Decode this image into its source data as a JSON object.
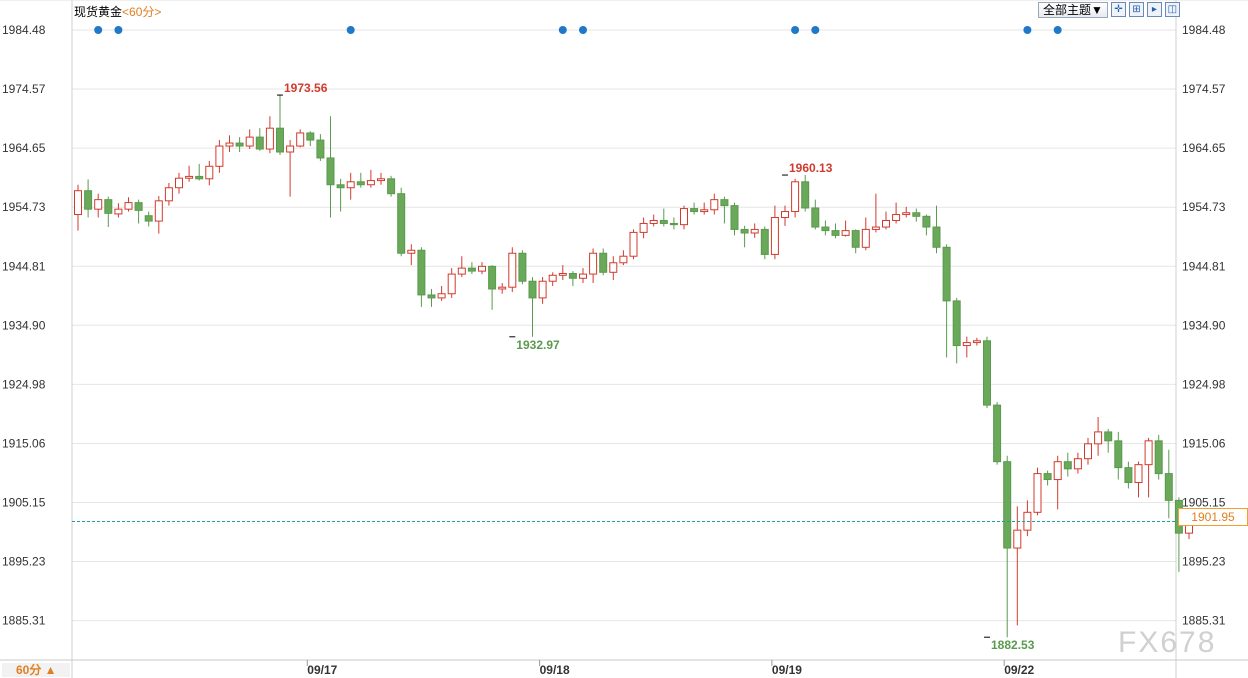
{
  "header": {
    "instrument": "现货黄金",
    "interval": "<60分>",
    "theme_label": "全部主题▼",
    "tool_icons": [
      "crosshair-icon",
      "grid-icon",
      "play-icon",
      "split-icon"
    ]
  },
  "footer": {
    "period_label": "60分 ▲",
    "watermark": "FX678"
  },
  "colors": {
    "up": "#d23a2e",
    "down": "#5a9a4e",
    "down_fill": "#6aa85a",
    "marker": "#1f78c8",
    "last_line": "#2a9a9a",
    "last_tag": "#e07f1f",
    "grid": "#e6e6e6"
  },
  "chart_data": {
    "type": "candlestick",
    "title": "现货黄金",
    "xlabel": "",
    "ylabel": "",
    "ylim": [
      1878.7,
      1986.5
    ],
    "grid": true,
    "yticks": [
      "1984.48",
      "1974.57",
      "1964.65",
      "1954.73",
      "1944.81",
      "1934.90",
      "1924.98",
      "1915.06",
      "1905.15",
      "1895.23",
      "1885.31"
    ],
    "date_labels": [
      {
        "label": "09/17",
        "index": 23
      },
      {
        "label": "09/18",
        "index": 46
      },
      {
        "label": "09/19",
        "index": 69
      },
      {
        "label": "09/22",
        "index": 92
      }
    ],
    "last_price": "1901.95",
    "high_low_labels": [
      {
        "text": "1973.56",
        "index": 20,
        "price": 1973.56,
        "kind": "high"
      },
      {
        "text": "1932.97",
        "index": 43,
        "price": 1932.97,
        "kind": "low"
      },
      {
        "text": "1960.13",
        "index": 70,
        "price": 1960.13,
        "kind": "high"
      },
      {
        "text": "1882.53",
        "index": 90,
        "price": 1882.53,
        "kind": "low"
      }
    ],
    "event_marker_indices": [
      2,
      4,
      27,
      48,
      50,
      71,
      73,
      94,
      97
    ],
    "candles": [
      [
        1953.5,
        1957.5,
        1958.5,
        1950.8
      ],
      [
        1957.5,
        1954.4,
        1959.4,
        1953.0
      ],
      [
        1954.4,
        1956.0,
        1957.0,
        1953.0
      ],
      [
        1956.0,
        1953.7,
        1956.5,
        1951.4
      ],
      [
        1953.6,
        1954.4,
        1955.4,
        1953.0
      ],
      [
        1954.4,
        1955.5,
        1956.4,
        1954.0
      ],
      [
        1955.5,
        1954.2,
        1956.0,
        1952.0
      ],
      [
        1953.3,
        1952.4,
        1954.0,
        1951.5
      ],
      [
        1952.4,
        1955.8,
        1956.6,
        1950.3
      ],
      [
        1955.8,
        1958.0,
        1958.8,
        1955.0
      ],
      [
        1958.0,
        1959.6,
        1960.5,
        1957.0
      ],
      [
        1959.6,
        1959.9,
        1961.7,
        1959.0
      ],
      [
        1959.9,
        1959.5,
        1962.0,
        1959.2
      ],
      [
        1959.5,
        1961.6,
        1962.5,
        1958.4
      ],
      [
        1961.6,
        1965.0,
        1966.0,
        1960.5
      ],
      [
        1965.0,
        1965.5,
        1966.8,
        1964.0
      ],
      [
        1965.5,
        1965.0,
        1966.5,
        1964.0
      ],
      [
        1965.0,
        1966.5,
        1967.8,
        1964.5
      ],
      [
        1966.5,
        1964.5,
        1968.0,
        1964.2
      ],
      [
        1964.5,
        1968.0,
        1970.0,
        1963.8
      ],
      [
        1968.0,
        1964.0,
        1973.56,
        1963.5
      ],
      [
        1964.0,
        1965.0,
        1966.0,
        1956.5
      ],
      [
        1965.0,
        1967.2,
        1967.8,
        1964.8
      ],
      [
        1967.2,
        1966.0,
        1967.5,
        1965.0
      ],
      [
        1966.0,
        1963.0,
        1967.0,
        1962.5
      ],
      [
        1963.0,
        1958.5,
        1970.0,
        1953.0
      ],
      [
        1958.5,
        1958.0,
        1959.5,
        1954.0
      ],
      [
        1958.0,
        1959.0,
        1960.5,
        1956.0
      ],
      [
        1959.0,
        1958.5,
        1960.5,
        1958.0
      ],
      [
        1958.5,
        1959.2,
        1961.0,
        1958.0
      ],
      [
        1959.2,
        1959.5,
        1960.5,
        1958.5
      ],
      [
        1959.5,
        1957.0,
        1960.0,
        1956.5
      ],
      [
        1957.0,
        1947.0,
        1958.0,
        1946.5
      ],
      [
        1947.0,
        1947.5,
        1948.5,
        1945.0
      ],
      [
        1947.5,
        1940.0,
        1948.0,
        1938.0
      ],
      [
        1940.0,
        1939.5,
        1941.0,
        1938.0
      ],
      [
        1939.5,
        1940.2,
        1941.5,
        1939.0
      ],
      [
        1940.2,
        1943.5,
        1944.5,
        1939.5
      ],
      [
        1943.5,
        1944.5,
        1946.5,
        1943.0
      ],
      [
        1944.5,
        1944.0,
        1945.5,
        1943.5
      ],
      [
        1944.0,
        1944.8,
        1945.5,
        1943.5
      ],
      [
        1944.8,
        1941.0,
        1945.0,
        1937.5
      ],
      [
        1941.0,
        1941.3,
        1942.0,
        1940.2
      ],
      [
        1941.3,
        1947.0,
        1948.0,
        1940.5
      ],
      [
        1947.0,
        1942.3,
        1947.5,
        1941.8
      ],
      [
        1942.3,
        1939.5,
        1943.0,
        1932.97
      ],
      [
        1939.5,
        1942.3,
        1943.0,
        1938.5
      ],
      [
        1942.3,
        1943.3,
        1943.8,
        1941.5
      ],
      [
        1943.3,
        1943.6,
        1945.0,
        1942.5
      ],
      [
        1943.6,
        1942.8,
        1944.0,
        1941.5
      ],
      [
        1942.8,
        1943.5,
        1944.5,
        1942.0
      ],
      [
        1943.5,
        1947.0,
        1947.8,
        1942.0
      ],
      [
        1947.0,
        1943.8,
        1947.8,
        1943.3
      ],
      [
        1943.8,
        1945.4,
        1946.5,
        1942.5
      ],
      [
        1945.4,
        1946.5,
        1947.5,
        1945.0
      ],
      [
        1946.5,
        1950.5,
        1951.0,
        1946.0
      ],
      [
        1950.5,
        1952.0,
        1953.0,
        1949.5
      ],
      [
        1952.0,
        1952.5,
        1953.5,
        1951.5
      ],
      [
        1952.5,
        1952.0,
        1954.5,
        1951.5
      ],
      [
        1952.0,
        1951.8,
        1953.0,
        1951.0
      ],
      [
        1951.8,
        1954.5,
        1955.0,
        1951.0
      ],
      [
        1954.5,
        1954.0,
        1955.5,
        1953.5
      ],
      [
        1954.0,
        1954.3,
        1955.5,
        1953.5
      ],
      [
        1954.3,
        1956.0,
        1957.0,
        1953.5
      ],
      [
        1956.0,
        1955.0,
        1956.5,
        1952.0
      ],
      [
        1955.0,
        1951.0,
        1955.5,
        1950.0
      ],
      [
        1951.0,
        1950.4,
        1951.6,
        1948.0
      ],
      [
        1950.4,
        1951.0,
        1952.0,
        1949.6
      ],
      [
        1951.0,
        1946.8,
        1951.5,
        1946.0
      ],
      [
        1946.8,
        1953.0,
        1955.0,
        1946.0
      ],
      [
        1953.0,
        1954.0,
        1955.0,
        1951.6
      ],
      [
        1954.0,
        1959.0,
        1959.5,
        1953.0
      ],
      [
        1959.0,
        1954.6,
        1960.13,
        1954.0
      ],
      [
        1954.6,
        1951.4,
        1956.0,
        1951.0
      ],
      [
        1951.4,
        1950.8,
        1952.5,
        1950.0
      ],
      [
        1950.8,
        1950.0,
        1952.0,
        1949.5
      ],
      [
        1950.0,
        1950.8,
        1952.5,
        1949.8
      ],
      [
        1950.8,
        1948.0,
        1951.0,
        1947.0
      ],
      [
        1948.0,
        1951.0,
        1953.0,
        1947.5
      ],
      [
        1951.0,
        1951.4,
        1957.0,
        1950.5
      ],
      [
        1951.4,
        1952.5,
        1954.0,
        1951.0
      ],
      [
        1952.5,
        1953.5,
        1955.5,
        1952.0
      ],
      [
        1953.5,
        1953.8,
        1954.8,
        1953.0
      ],
      [
        1953.8,
        1953.2,
        1954.5,
        1952.3
      ],
      [
        1953.2,
        1951.4,
        1953.5,
        1950.0
      ],
      [
        1951.4,
        1948.0,
        1955.0,
        1947.0
      ],
      [
        1948.0,
        1939.0,
        1948.5,
        1929.5
      ],
      [
        1939.0,
        1931.5,
        1939.5,
        1928.5
      ],
      [
        1931.5,
        1932.0,
        1933.0,
        1929.5
      ],
      [
        1932.0,
        1932.3,
        1932.8,
        1931.5
      ],
      [
        1932.3,
        1921.5,
        1933.0,
        1921.0
      ],
      [
        1921.5,
        1912.0,
        1922.0,
        1911.5
      ],
      [
        1912.0,
        1897.5,
        1913.0,
        1882.53
      ],
      [
        1897.5,
        1900.5,
        1904.5,
        1884.5
      ],
      [
        1900.5,
        1903.5,
        1905.5,
        1899.5
      ],
      [
        1903.5,
        1910.0,
        1911.0,
        1903.0
      ],
      [
        1910.0,
        1909.0,
        1910.5,
        1908.0
      ],
      [
        1909.0,
        1912.0,
        1913.0,
        1904.0
      ],
      [
        1912.0,
        1910.8,
        1913.5,
        1909.5
      ],
      [
        1910.8,
        1912.5,
        1913.5,
        1910.0
      ],
      [
        1912.5,
        1915.0,
        1916.0,
        1911.5
      ],
      [
        1915.0,
        1917.0,
        1919.5,
        1913.0
      ],
      [
        1917.0,
        1915.5,
        1917.5,
        1913.5
      ],
      [
        1915.5,
        1911.0,
        1917.0,
        1909.0
      ],
      [
        1911.0,
        1908.5,
        1912.0,
        1907.5
      ],
      [
        1908.5,
        1911.5,
        1912.0,
        1906.0
      ],
      [
        1911.5,
        1915.5,
        1916.0,
        1906.0
      ],
      [
        1915.5,
        1910.0,
        1916.5,
        1909.0
      ],
      [
        1910.0,
        1905.5,
        1914.0,
        1902.5
      ],
      [
        1905.5,
        1900.0,
        1906.0,
        1893.5
      ],
      [
        1900.0,
        1901.95,
        1903.0,
        1899.0
      ]
    ]
  }
}
